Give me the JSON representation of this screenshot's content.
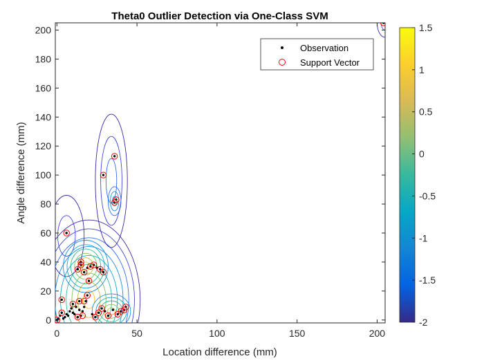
{
  "chart_data": {
    "type": "scatter",
    "title": "Theta0 Outlier Detection via One-Class SVM",
    "xlabel": "Location difference (mm)",
    "ylabel": "Angle difference (mm)",
    "xlim": [
      -1,
      205
    ],
    "ylim": [
      -2,
      205
    ],
    "x_ticks": [
      "0",
      "50",
      "100",
      "150",
      "200"
    ],
    "y_ticks": [
      "0",
      "20",
      "40",
      "60",
      "80",
      "100",
      "120",
      "140",
      "160",
      "180",
      "200"
    ],
    "colorbar": {
      "colormap": "parula",
      "range": [
        -2,
        1.5
      ],
      "ticks": [
        "1.5",
        "1",
        "0.5",
        "0",
        "-0.5",
        "-1",
        "-1.5",
        "-2"
      ]
    },
    "legend": {
      "position": "top-right",
      "entries": [
        {
          "label": "Observation",
          "marker": "black-dot"
        },
        {
          "label": "Support Vector",
          "marker": "red-circle"
        }
      ]
    },
    "series": [
      {
        "name": "Observation",
        "color": "#000000",
        "points": [
          [
            0,
            0
          ],
          [
            1,
            1
          ],
          [
            2,
            3
          ],
          [
            3,
            5
          ],
          [
            4,
            1
          ],
          [
            5,
            2
          ],
          [
            6,
            4
          ],
          [
            7,
            3
          ],
          [
            8,
            6
          ],
          [
            9,
            8
          ],
          [
            10,
            5
          ],
          [
            10,
            11
          ],
          [
            11,
            4
          ],
          [
            12,
            9
          ],
          [
            13,
            2
          ],
          [
            14,
            7
          ],
          [
            14,
            13
          ],
          [
            15,
            3
          ],
          [
            16,
            6
          ],
          [
            17,
            9
          ],
          [
            18,
            13
          ],
          [
            19,
            17
          ],
          [
            20,
            27
          ],
          [
            13,
            35
          ],
          [
            15,
            38
          ],
          [
            15,
            40
          ],
          [
            17,
            33
          ],
          [
            19,
            36
          ],
          [
            21,
            37
          ],
          [
            23,
            38
          ],
          [
            25,
            36
          ],
          [
            27,
            35
          ],
          [
            29,
            33
          ],
          [
            26,
            5
          ],
          [
            28,
            8
          ],
          [
            30,
            6
          ],
          [
            35,
            7
          ],
          [
            38,
            4
          ],
          [
            40,
            6
          ],
          [
            42,
            7
          ],
          [
            43,
            9
          ],
          [
            22,
            4
          ],
          [
            24,
            2
          ],
          [
            32,
            3
          ],
          [
            3,
            14
          ],
          [
            6,
            60
          ],
          [
            36,
            81
          ],
          [
            37,
            83
          ],
          [
            29,
            100
          ],
          [
            36,
            113
          ],
          [
            204,
            205
          ]
        ]
      },
      {
        "name": "Support Vector",
        "color": "#ff0000",
        "points": [
          [
            0,
            0
          ],
          [
            3,
            5
          ],
          [
            3,
            14
          ],
          [
            10,
            11
          ],
          [
            13,
            2
          ],
          [
            14,
            13
          ],
          [
            16,
            3
          ],
          [
            17,
            13
          ],
          [
            19,
            17
          ],
          [
            20,
            27
          ],
          [
            13,
            35
          ],
          [
            15,
            38
          ],
          [
            15,
            40
          ],
          [
            17,
            33
          ],
          [
            21,
            37
          ],
          [
            23,
            38
          ],
          [
            27,
            35
          ],
          [
            29,
            33
          ],
          [
            26,
            5
          ],
          [
            28,
            8
          ],
          [
            24,
            2
          ],
          [
            32,
            3
          ],
          [
            38,
            4
          ],
          [
            40,
            6
          ],
          [
            42,
            7
          ],
          [
            43,
            9
          ],
          [
            6,
            60
          ],
          [
            36,
            81
          ],
          [
            37,
            83
          ],
          [
            29,
            100
          ],
          [
            36,
            113
          ],
          [
            204,
            205
          ]
        ]
      }
    ],
    "contours": {
      "type": "decision-function",
      "cluster_centers": [
        [
          20,
          20
        ],
        [
          6,
          60
        ],
        [
          34,
          90
        ],
        [
          204,
          205
        ]
      ]
    }
  }
}
